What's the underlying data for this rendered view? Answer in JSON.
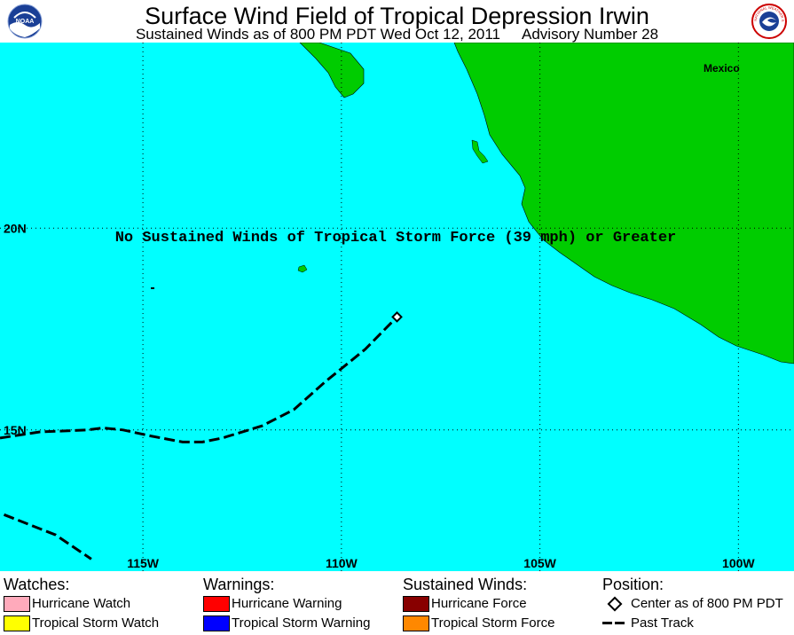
{
  "header": {
    "title": "Surface Wind Field of Tropical Depression Irwin",
    "subtitle_time": "Sustained Winds as of 800 PM PDT Wed Oct 12, 2011",
    "subtitle_advisory": "Advisory Number 28",
    "noaa_logo_text": "NOAA",
    "nws_logo_text": "NATIONAL WEATHER SERVICE"
  },
  "map": {
    "ocean_color": "#00ffff",
    "land_color": "#00cc00",
    "country_label": "Mexico",
    "notice": "No Sustained Winds of Tropical Storm Force (39 mph) or Greater",
    "lat_labels": [
      "20N",
      "15N"
    ],
    "lon_labels": [
      "115W",
      "110W",
      "105W",
      "100W"
    ],
    "lon_range": [
      -118.6,
      -98.6
    ],
    "lat_range": [
      11.5,
      24.6
    ],
    "storm_center": {
      "lat": 17.8,
      "lon": -108.6
    },
    "past_track": [
      {
        "lat": 14.8,
        "lon": -118.6
      },
      {
        "lat": 14.95,
        "lon": -117.6
      },
      {
        "lat": 15.0,
        "lon": -116.4
      },
      {
        "lat": 15.05,
        "lon": -116.0
      },
      {
        "lat": 15.0,
        "lon": -115.5
      },
      {
        "lat": 14.85,
        "lon": -114.8
      },
      {
        "lat": 14.7,
        "lon": -114.0
      },
      {
        "lat": 14.7,
        "lon": -113.5
      },
      {
        "lat": 14.8,
        "lon": -113.0
      },
      {
        "lat": 15.1,
        "lon": -112.0
      },
      {
        "lat": 15.5,
        "lon": -111.2
      },
      {
        "lat": 16.2,
        "lon": -110.4
      },
      {
        "lat": 17.0,
        "lon": -109.4
      },
      {
        "lat": 17.5,
        "lon": -108.9
      },
      {
        "lat": 17.8,
        "lon": -108.6
      }
    ],
    "older_track": [
      {
        "lat": 12.9,
        "lon": -118.5
      },
      {
        "lat": 12.4,
        "lon": -117.2
      },
      {
        "lat": 11.8,
        "lon": -116.3
      }
    ]
  },
  "legend": {
    "watches": {
      "heading": "Watches:",
      "items": [
        {
          "label": "Hurricane Watch",
          "color": "#ffaabb"
        },
        {
          "label": "Tropical Storm Watch",
          "color": "#ffff00"
        }
      ]
    },
    "warnings": {
      "heading": "Warnings:",
      "items": [
        {
          "label": "Hurricane Warning",
          "color": "#ff0000"
        },
        {
          "label": "Tropical Storm Warning",
          "color": "#0000ff"
        }
      ]
    },
    "winds": {
      "heading": "Sustained Winds:",
      "items": [
        {
          "label": "Hurricane Force",
          "color": "#880000"
        },
        {
          "label": "Tropical Storm Force",
          "color": "#ff8800"
        }
      ]
    },
    "position": {
      "heading": "Position:",
      "center_label": "Center as of 800 PM PDT",
      "track_label": "Past Track"
    }
  }
}
